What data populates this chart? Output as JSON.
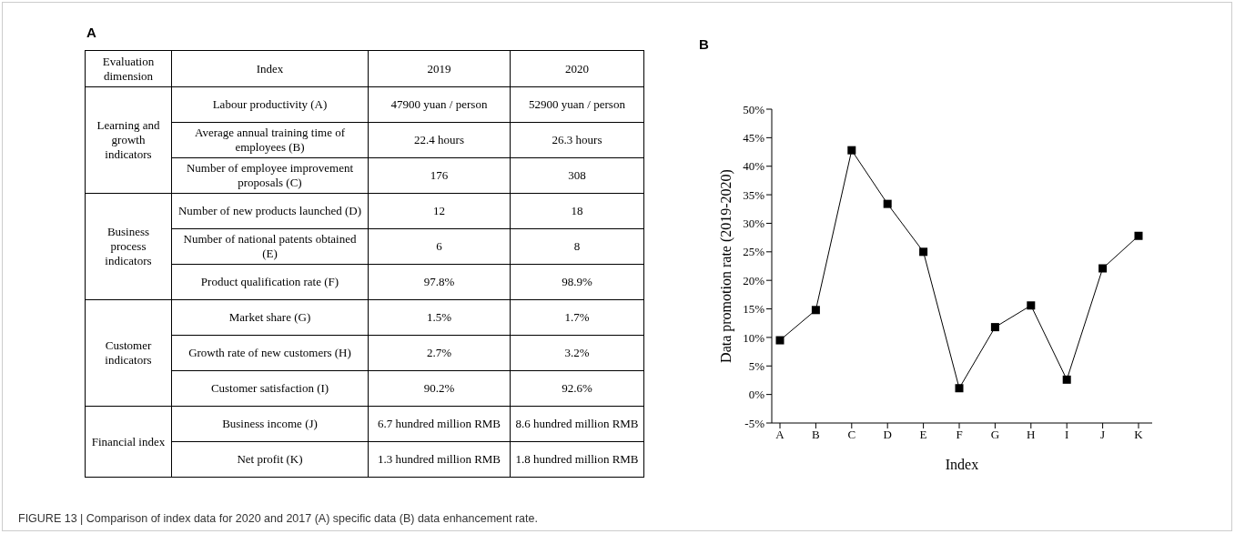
{
  "chart_data": [
    {
      "type": "other",
      "title": "A",
      "categories": [
        "Evaluation dimension",
        "Index",
        "2019",
        "2020"
      ],
      "cell_labels": [
        [
          "Learning and growth indicators",
          "Labour productivity (A)",
          "47900 yuan / person",
          "52900 yuan / person"
        ],
        [
          null,
          "Average annual training time of employees (B)",
          "22.4 hours",
          "26.3 hours"
        ],
        [
          null,
          "Number of employee improvement proposals (C)",
          "176",
          "308"
        ],
        [
          "Business process indicators",
          "Number of new products launched (D)",
          "12",
          "18"
        ],
        [
          null,
          "Number of national patents obtained (E)",
          "6",
          "8"
        ],
        [
          null,
          "Product qualification rate (F)",
          "97.8%",
          "98.9%"
        ],
        [
          "Customer indicators",
          "Market share (G)",
          "1.5%",
          "1.7%"
        ],
        [
          null,
          "Growth rate of new customers (H)",
          "2.7%",
          "3.2%"
        ],
        [
          null,
          "Customer satisfaction (I)",
          "90.2%",
          "92.6%"
        ],
        [
          "Financial index",
          "Business income (J)",
          "6.7 hundred million RMB",
          "8.6 hundred million RMB"
        ],
        [
          null,
          "Net profit (K)",
          "1.3 hundred million RMB",
          "1.8 hundred million RMB"
        ]
      ],
      "annotations": [
        "FIGURE 13 | Comparison of index data for 2020 and 2017 (A) specific data (B) data enhancement rate."
      ]
    },
    {
      "type": "line",
      "title": "B",
      "xlabel": "Index",
      "ylabel": "Data promotion rate (2019-2020)",
      "categories": [
        "A",
        "B",
        "C",
        "D",
        "E",
        "F",
        "G",
        "H",
        "I",
        "J",
        "K"
      ],
      "series": [
        {
          "color": "#000000",
          "values": [
            9.5,
            14.8,
            42.8,
            33.4,
            25.0,
            1.1,
            11.8,
            15.6,
            2.6,
            22.1,
            27.8
          ]
        }
      ],
      "ylim": [
        -5,
        50
      ],
      "yticks": [
        {
          "value": -5,
          "label": "-5%"
        },
        {
          "value": 0,
          "label": "0%"
        },
        {
          "value": 5,
          "label": "5%"
        },
        {
          "value": 10,
          "label": "10%"
        },
        {
          "value": 15,
          "label": "15%"
        },
        {
          "value": 20,
          "label": "20%"
        },
        {
          "value": 25,
          "label": "25%"
        },
        {
          "value": 30,
          "label": "30%"
        },
        {
          "value": 35,
          "label": "35%"
        },
        {
          "value": 40,
          "label": "40%"
        },
        {
          "value": 45,
          "label": "45%"
        },
        {
          "value": 50,
          "label": "50%"
        }
      ],
      "marker": "square",
      "line_style": "solid",
      "grid": false,
      "legend": false
    }
  ]
}
